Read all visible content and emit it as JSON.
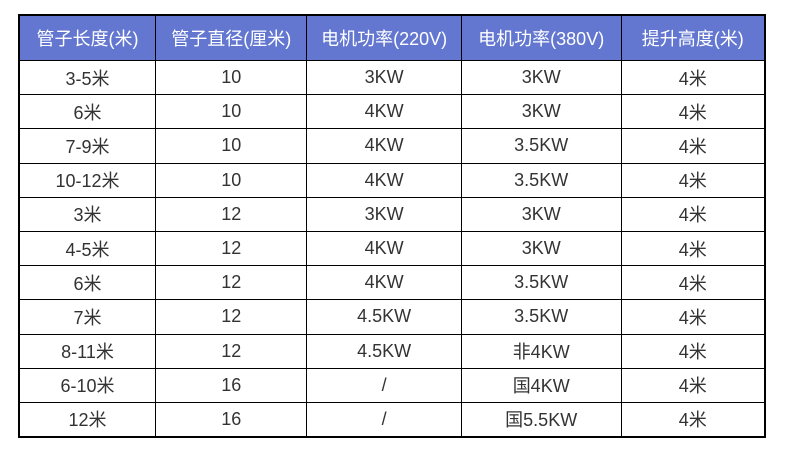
{
  "chart_data": {
    "type": "table",
    "title": "",
    "columns": [
      "管子长度(米)",
      "管子直径(厘米)",
      "电机功率(220V)",
      "电机功率(380V)",
      "提升高度(米)"
    ],
    "rows": [
      [
        "3-5米",
        "10",
        "3KW",
        "3KW",
        "4米"
      ],
      [
        "6米",
        "10",
        "4KW",
        "3KW",
        "4米"
      ],
      [
        "7-9米",
        "10",
        "4KW",
        "3.5KW",
        "4米"
      ],
      [
        "10-12米",
        "10",
        "4KW",
        "3.5KW",
        "4米"
      ],
      [
        "3米",
        "12",
        "3KW",
        "3KW",
        "4米"
      ],
      [
        "4-5米",
        "12",
        "4KW",
        "3KW",
        "4米"
      ],
      [
        "6米",
        "12",
        "4KW",
        "3.5KW",
        "4米"
      ],
      [
        "7米",
        "12",
        "4.5KW",
        "3.5KW",
        "4米"
      ],
      [
        "8-11米",
        "12",
        "4.5KW",
        "非4KW",
        "4米"
      ],
      [
        "6-10米",
        "16",
        "/",
        "国4KW",
        "4米"
      ],
      [
        "12米",
        "16",
        "/",
        "国5.5KW",
        "4米"
      ]
    ]
  },
  "colors": {
    "header_bg": "#6377d1",
    "header_text": "#ffffff",
    "body_text": "#333333",
    "grid_border": "#000000",
    "background": "#ffffff"
  }
}
